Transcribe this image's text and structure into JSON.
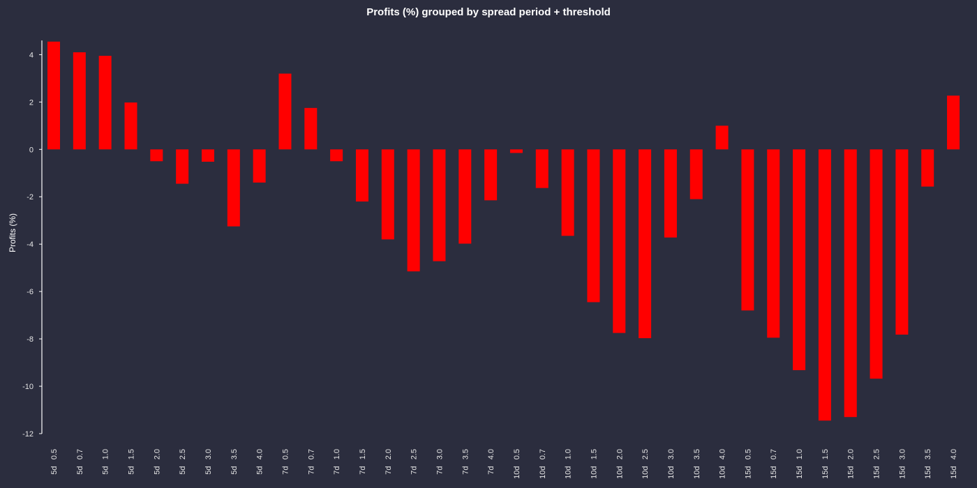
{
  "chart_data": {
    "type": "bar",
    "title": "Profits (%) grouped by spread period + threshold",
    "xlabel": "",
    "ylabel": "Profits (%)",
    "ylim": [
      -12,
      4.6
    ],
    "yticks": [
      4,
      2,
      0,
      -2,
      -4,
      -6,
      -8,
      -10,
      -12
    ],
    "grid": false,
    "legend": "none",
    "bar_color": "#ff0000",
    "categories": [
      "5d 0.5",
      "5d 0.7",
      "5d 1.0",
      "5d 1.5",
      "5d 2.0",
      "5d 2.5",
      "5d 3.0",
      "5d 3.5",
      "5d 4.0",
      "7d 0.5",
      "7d 0.7",
      "7d 1.0",
      "7d 1.5",
      "7d 2.0",
      "7d 2.5",
      "7d 3.0",
      "7d 3.5",
      "7d 4.0",
      "10d 0.5",
      "10d 0.7",
      "10d 1.0",
      "10d 1.5",
      "10d 2.0",
      "10d 2.5",
      "10d 3.0",
      "10d 3.5",
      "10d 4.0",
      "15d 0.5",
      "15d 0.7",
      "15d 1.0",
      "15d 1.5",
      "15d 2.0",
      "15d 2.5",
      "15d 3.0",
      "15d 3.5",
      "15d 4.0"
    ],
    "values": [
      4.55,
      4.1,
      3.95,
      1.98,
      -0.5,
      -1.45,
      -0.52,
      -3.25,
      -1.4,
      3.2,
      1.75,
      -0.5,
      -2.2,
      -3.8,
      -5.15,
      -4.72,
      -3.98,
      -2.15,
      -0.15,
      -1.63,
      -3.65,
      -6.45,
      -7.75,
      -7.97,
      -3.72,
      -2.1,
      1.0,
      -6.8,
      -7.95,
      -9.32,
      -11.45,
      -11.3,
      -9.68,
      -7.82,
      -1.57,
      2.27
    ]
  }
}
